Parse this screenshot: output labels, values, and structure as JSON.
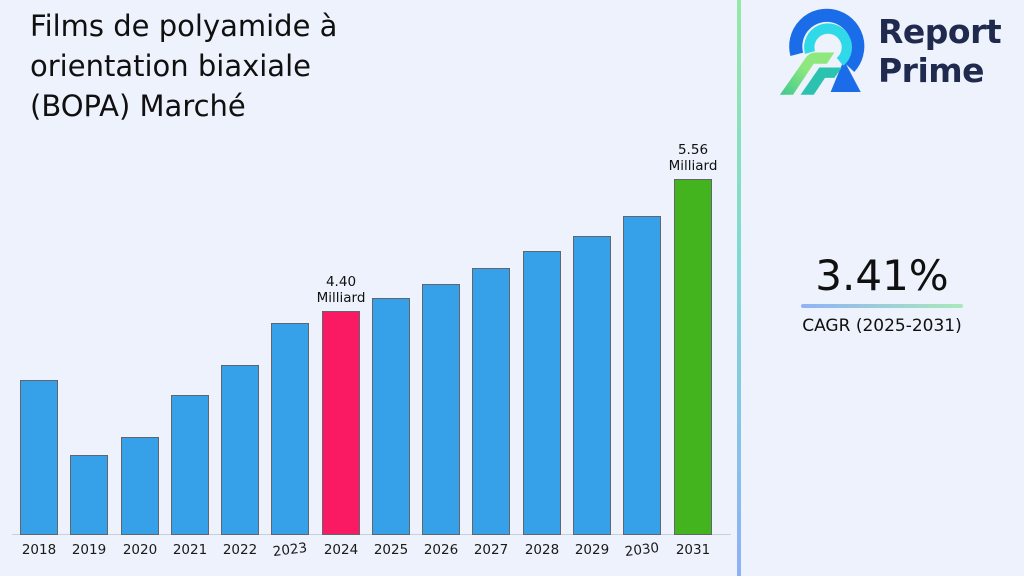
{
  "title": "Films de polyamide à\norientation biaxiale\n(BOPA) Marché",
  "logo": {
    "brand_line1": "Report",
    "brand_line2": "Prime",
    "icon_colors": {
      "outer_arc_blue": "#1b6ce8",
      "inner_arc_cyan": "#2fd9e8",
      "stripe_green_light": "#8ee87e",
      "stripe_green_dark": "#3ec98f",
      "stripe_teal": "#2cc2b0"
    },
    "text_color": "#1f2a4e"
  },
  "cagr": {
    "value": "3.41%",
    "label": "CAGR (2025-2031)",
    "underline_gradient": [
      "#8fb3f6",
      "#a9e9bb"
    ]
  },
  "chart_data": {
    "type": "bar",
    "title": "Films de polyamide à orientation biaxiale (BOPA) Marché",
    "unit": "Milliard",
    "categories": [
      "2018",
      "2019",
      "2020",
      "2021",
      "2022",
      "2023",
      "2024",
      "2025",
      "2026",
      "2027",
      "2028",
      "2029",
      "2030",
      "2031"
    ],
    "values": [
      3.79,
      3.13,
      3.29,
      3.66,
      3.92,
      4.29,
      4.4,
      4.51,
      4.64,
      4.78,
      4.93,
      5.06,
      5.23,
      5.56
    ],
    "bar_labels": [
      {
        "category": "2024",
        "text": "4.40\nMilliard"
      },
      {
        "category": "2031",
        "text": "5.56\nMilliard"
      }
    ],
    "bar_color_default": "#36a0e8",
    "highlight_colors": {
      "2024": "#fa1a63",
      "2031": "#44b41e"
    },
    "bar_border_color": "#61666d",
    "ylim": [
      2.43,
      5.9
    ],
    "xlabel": "",
    "ylabel": "",
    "grid": false,
    "legend": false,
    "background": "#edf2fc"
  }
}
